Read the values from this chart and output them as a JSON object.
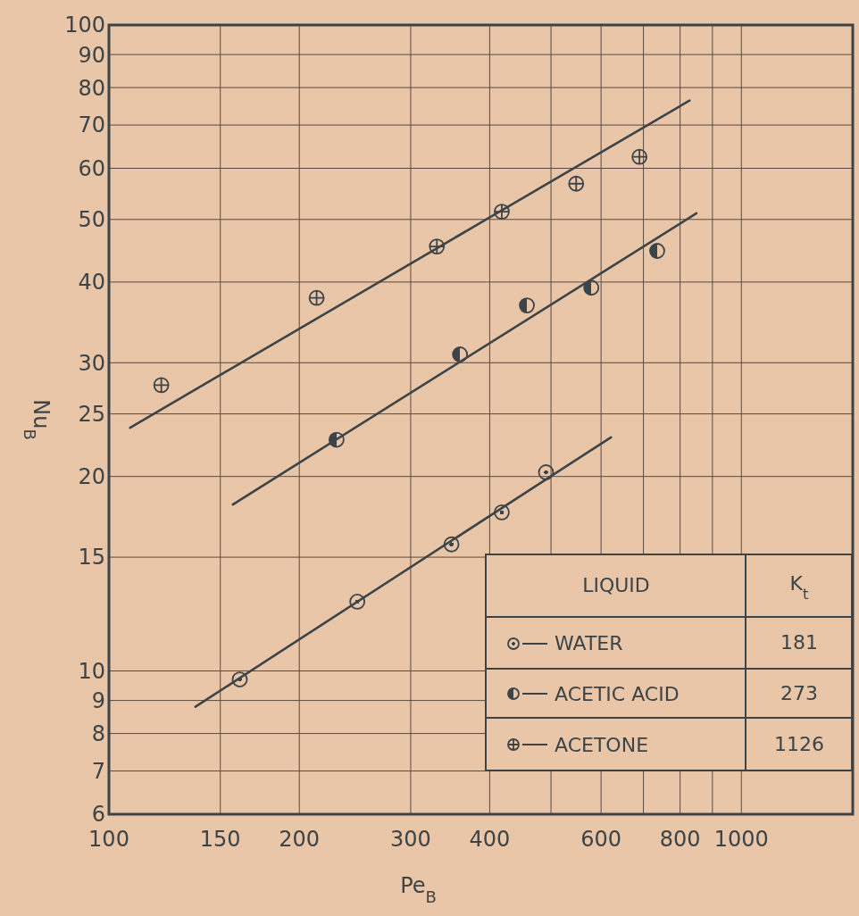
{
  "chart_data": {
    "type": "scatter",
    "xlabel": "Pe$_{B}$",
    "ylabel": "Nu$_{B}$",
    "log": "xy",
    "grid": true,
    "marker": "circle",
    "legend": "bottom right",
    "legend_title": "LIQUID",
    "xlim": [
      100,
      1500
    ],
    "xticks": [
      100,
      150,
      200,
      300,
      400,
      {
        "value": 500,
        "label": null
      },
      600,
      {
        "value": 700,
        "label": null
      },
      800,
      {
        "value": 900,
        "label": null
      },
      1000
    ],
    "ylim": [
      6,
      100
    ],
    "yticks": [
      6,
      7,
      8,
      9,
      10,
      15,
      20,
      25,
      30,
      40,
      50,
      60,
      70,
      80,
      90,
      100
    ],
    "annotations": [
      "K$_{t}$",
      "181",
      "273",
      "1126"
    ],
    "series": [
      {
        "name": "WATER",
        "color": "#3c4448",
        "x": [
          161,
          247,
          348,
          418,
          491
        ],
        "values": [
          9.7,
          12.8,
          15.7,
          17.6,
          20.3
        ]
      },
      {
        "name": "ACETIC ACID",
        "color": "#3c4448",
        "x": [
          229,
          359,
          458,
          579,
          736
        ],
        "values": [
          22.8,
          30.9,
          36.8,
          39.2,
          44.7
        ]
      },
      {
        "name": "ACETONE",
        "marker": "cross",
        "color": "#3c4448",
        "x": [
          121,
          213,
          330,
          418,
          548,
          690
        ],
        "values": [
          27.7,
          37.8,
          45.4,
          51.4,
          56.8,
          62.5
        ]
      },
      {
        "type": "line",
        "marker": "none",
        "color": "#3c4448",
        "x": [
          137,
          622
        ],
        "values": [
          8.8,
          23.0
        ]
      },
      {
        "type": "line",
        "marker": "none",
        "color": "#3c4448",
        "x": [
          157,
          849
        ],
        "values": [
          18.1,
          51.1
        ]
      },
      {
        "type": "line",
        "marker": "none",
        "color": "#3c4448",
        "x": [
          108,
          828
        ],
        "values": [
          23.8,
          76.4
        ]
      }
    ]
  }
}
